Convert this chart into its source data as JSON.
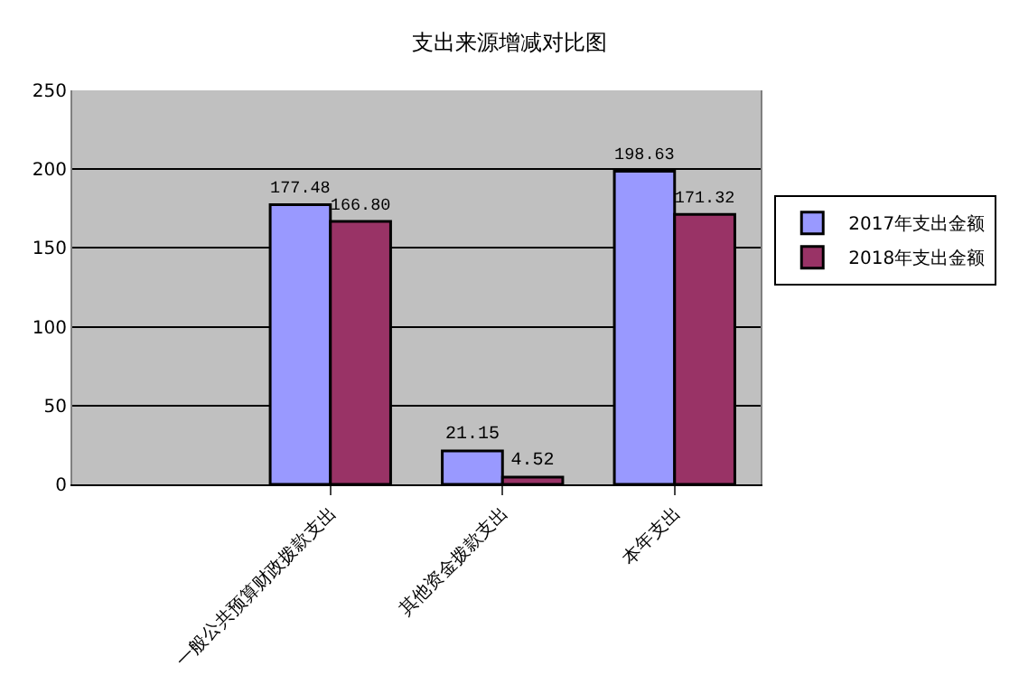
{
  "chart_data": {
    "type": "bar",
    "title": "支出来源增减对比图",
    "categories": [
      null,
      "一般公共预算财政拨款支出",
      "其他资金拨款支出",
      "本年支出"
    ],
    "series": [
      {
        "name": "2017年支出金额",
        "color": "#9999ff",
        "values": [
          null,
          177.48,
          21.15,
          198.63
        ],
        "value_labels": [
          null,
          "177.48",
          "21.15",
          "198.63"
        ]
      },
      {
        "name": "2018年支出金额",
        "color": "#993366",
        "values": [
          null,
          166.8,
          4.52,
          171.32
        ],
        "value_labels": [
          null,
          "166.80",
          "4.52",
          "171.32"
        ]
      }
    ],
    "ylim": [
      0,
      250
    ],
    "yticks": [
      0,
      50,
      100,
      150,
      200,
      250
    ],
    "grid": "y",
    "legend": "right"
  }
}
